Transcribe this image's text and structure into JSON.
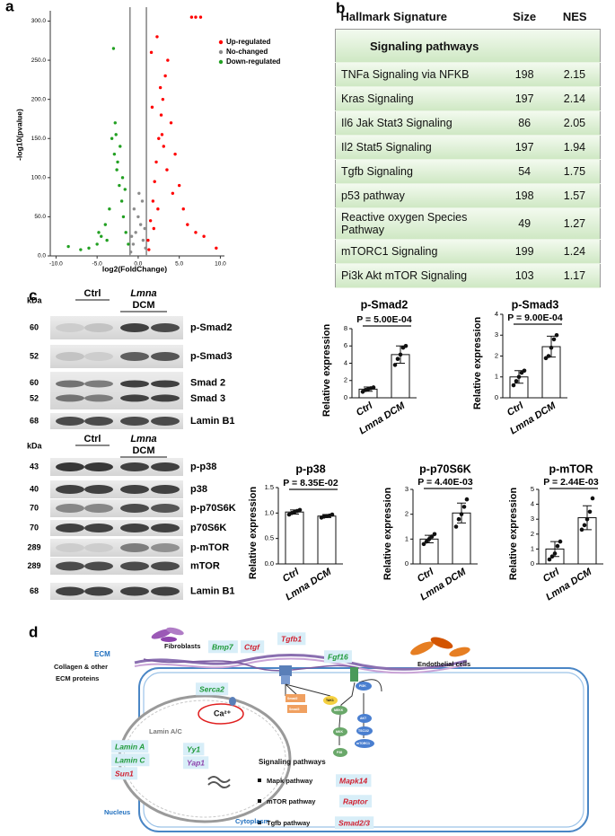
{
  "panel_labels": [
    "a",
    "b",
    "c",
    "d"
  ],
  "chart_data": [
    {
      "type": "scatter",
      "xlabel": "log2(FoldChange)",
      "ylabel": "-log10(pvalue)",
      "xlim": [
        -10.7,
        10.5
      ],
      "ylim": [
        0,
        304
      ],
      "xticks": [
        {
          "value": -10,
          "label": "-10.0"
        },
        {
          "value": -5,
          "label": "-5.0"
        },
        {
          "value": 0,
          "label": "0.0"
        },
        {
          "value": 5,
          "label": "5.0"
        },
        {
          "value": 10,
          "label": "10.0"
        }
      ],
      "yticks": [
        {
          "value": 0,
          "label": "0.0"
        },
        {
          "value": 50,
          "label": "50.0"
        },
        {
          "value": 100,
          "label": "100.0"
        },
        {
          "value": 150,
          "label": "150.0"
        },
        {
          "value": 200,
          "label": "200.0"
        },
        {
          "value": 250,
          "label": "250.0"
        },
        {
          "value": 300,
          "label": "300.0"
        }
      ],
      "vlines": [
        -1,
        1
      ],
      "legend": "upper right",
      "series": [
        {
          "name": "Up-regulated",
          "color": "#ff0000",
          "x": [
            1.2,
            1.5,
            1.8,
            2.0,
            2.2,
            2.5,
            2.8,
            3.0,
            3.3,
            3.6,
            4.0,
            4.5,
            5.0,
            5.5,
            6.0,
            7.0,
            8.0,
            9.5,
            1.6,
            2.3,
            2.7,
            3.1,
            3.5,
            1.3,
            1.9,
            2.4,
            4.2,
            2.9,
            1.7,
            6.5,
            7.0,
            7.6
          ],
          "values": [
            20,
            45,
            70,
            95,
            120,
            150,
            180,
            200,
            230,
            250,
            170,
            130,
            90,
            60,
            40,
            30,
            25,
            10,
            260,
            280,
            215,
            140,
            110,
            8,
            35,
            60,
            80,
            155,
            190,
            305,
            305,
            305
          ]
        },
        {
          "name": "No-changed",
          "color": "#8c8c8c",
          "x": [
            -0.9,
            -0.6,
            -0.3,
            0,
            0.3,
            0.6,
            0.9,
            -0.5,
            0.5,
            -0.8,
            0.8,
            0.1
          ],
          "values": [
            5,
            15,
            30,
            50,
            40,
            20,
            10,
            60,
            70,
            25,
            35,
            80
          ]
        },
        {
          "name": "Down-regulated",
          "color": "#22a022",
          "x": [
            -1.2,
            -1.5,
            -1.8,
            -2.0,
            -2.3,
            -2.6,
            -2.9,
            -3.2,
            -3.5,
            -4.0,
            -4.5,
            -5.0,
            -6.0,
            -7.0,
            -8.5,
            -2.8,
            -2.5,
            -1.6,
            -3.0,
            -2.2,
            -4.8,
            -1.9,
            -3.8,
            -2.7
          ],
          "values": [
            15,
            30,
            50,
            70,
            90,
            110,
            130,
            150,
            60,
            40,
            25,
            15,
            10,
            8,
            12,
            170,
            120,
            85,
            265,
            140,
            30,
            100,
            20,
            155
          ]
        }
      ]
    },
    {
      "type": "bar",
      "title": "p-Smad2",
      "annotation": "P = 5.00E-04",
      "ylabel": "Relative expression",
      "categories": [
        "Ctrl",
        "Lmna DCM"
      ],
      "values": [
        1.0,
        5.0
      ],
      "errors": [
        0.25,
        1.0
      ],
      "points": [
        [
          0.7,
          0.9,
          1.0,
          1.1,
          1.2
        ],
        [
          3.8,
          4.5,
          5.0,
          5.8,
          6.0
        ]
      ],
      "ylim": [
        0,
        8
      ],
      "yticks": [
        0,
        2,
        4,
        6,
        8
      ],
      "color": "#ffffff"
    },
    {
      "type": "bar",
      "title": "p-Smad3",
      "annotation": "P = 9.00E-04",
      "ylabel": "Relative expression",
      "categories": [
        "Ctrl",
        "Lmna DCM"
      ],
      "values": [
        1.0,
        2.45
      ],
      "errors": [
        0.3,
        0.5
      ],
      "points": [
        [
          0.6,
          0.8,
          1.0,
          1.2,
          1.3
        ],
        [
          1.9,
          2.0,
          2.4,
          2.8,
          3.0
        ]
      ],
      "ylim": [
        0,
        4
      ],
      "yticks": [
        0,
        1,
        2,
        3,
        4
      ],
      "color": "#ffffff"
    },
    {
      "type": "bar",
      "title": "p-p38",
      "annotation": "P = 8.35E-02",
      "ylabel": "Relative expression",
      "categories": [
        "Ctrl",
        "Lmna DCM"
      ],
      "values": [
        1.02,
        0.94
      ],
      "errors": [
        0.04,
        0.03
      ],
      "points": [
        [
          0.97,
          1.0,
          1.02,
          1.04,
          1.06
        ],
        [
          0.91,
          0.93,
          0.94,
          0.95,
          0.97
        ]
      ],
      "ylim": [
        0,
        1.5
      ],
      "yticks": [
        {
          "value": 0,
          "label": "0.0"
        },
        0.5,
        {
          "value": 1,
          "label": "1.0"
        },
        1.5
      ],
      "color": "#ffffff"
    },
    {
      "type": "bar",
      "title": "p-p70S6K",
      "annotation": "P = 4.40E-03",
      "ylabel": "Relative expression",
      "categories": [
        "Ctrl",
        "Lmna DCM"
      ],
      "values": [
        1.0,
        2.05
      ],
      "errors": [
        0.15,
        0.4
      ],
      "points": [
        [
          0.8,
          0.9,
          1.0,
          1.1,
          1.2
        ],
        [
          1.5,
          1.8,
          2.0,
          2.3,
          2.6
        ]
      ],
      "ylim": [
        0,
        3
      ],
      "yticks": [
        0,
        1,
        2,
        3
      ],
      "color": "#ffffff"
    },
    {
      "type": "bar",
      "title": "p-mTOR",
      "annotation": "P = 2.44E-03",
      "ylabel": "Relative expression",
      "categories": [
        "Ctrl",
        "Lmna DCM"
      ],
      "values": [
        1.0,
        3.1
      ],
      "errors": [
        0.5,
        0.8
      ],
      "points": [
        [
          0.3,
          0.5,
          0.7,
          1.2,
          1.5
        ],
        [
          2.3,
          2.6,
          3.0,
          3.5,
          4.4
        ]
      ],
      "ylim": [
        0,
        5
      ],
      "yticks": [
        0,
        1,
        2,
        3,
        4,
        5
      ],
      "color": "#ffffff"
    }
  ],
  "table": {
    "columns": [
      "Hallmark Signature",
      "Size",
      "NES"
    ],
    "section": "Signaling pathways",
    "rows": [
      [
        "TNFa Signaling via NFKB",
        198,
        2.15
      ],
      [
        "Kras Signaling",
        197,
        2.14
      ],
      [
        "Il6 Jak Stat3 Signaling",
        86,
        2.05
      ],
      [
        "Il2 Stat5 Signaling",
        197,
        1.94
      ],
      [
        "Tgfb Signaling",
        54,
        1.75
      ],
      [
        "p53 pathway",
        198,
        1.57
      ],
      [
        "Reactive oxygen Species Pathway",
        49,
        1.27
      ],
      [
        "mTORC1 Signaling",
        199,
        1.24
      ],
      [
        "Pi3k Akt mTOR Signaling",
        103,
        1.17
      ]
    ]
  },
  "blots": [
    {
      "kda_label": "kDa",
      "groups": [
        "Ctrl",
        [
          "Lmna",
          "DCM"
        ]
      ],
      "rows": [
        {
          "kda": [
            60
          ],
          "labels": [
            "p-Smad2"
          ]
        },
        {
          "kda": [
            52
          ],
          "labels": [
            "p-Smad3"
          ]
        },
        {
          "kda": [
            60,
            52
          ],
          "labels": [
            "Smad 2",
            "Smad 3"
          ]
        },
        {
          "kda": [
            68
          ],
          "labels": [
            "Lamin B1"
          ]
        }
      ]
    },
    {
      "kda_label": "kDa",
      "groups": [
        "Ctrl",
        [
          "Lmna",
          "DCM"
        ]
      ],
      "rows": [
        {
          "kda": [
            43
          ],
          "labels": [
            "p-p38"
          ]
        },
        {
          "kda": [
            40
          ],
          "labels": [
            "p38"
          ]
        },
        {
          "kda": [
            70
          ],
          "labels": [
            "p-p70S6K"
          ]
        },
        {
          "kda": [
            70
          ],
          "labels": [
            "p70S6K"
          ]
        },
        {
          "kda": [
            289
          ],
          "labels": [
            "p-mTOR"
          ]
        },
        {
          "kda": [
            289
          ],
          "labels": [
            "mTOR"
          ]
        },
        {
          "kda": [
            68
          ],
          "labels": [
            "Lamin B1"
          ]
        }
      ]
    }
  ],
  "diagram": {
    "labels": [
      "ECM",
      "Collagen & other",
      "ECM proteins",
      "Fibroblasts",
      "Bmp7",
      "Ctgf",
      "Tgfb1",
      "Fgf16",
      "Endothelial cells",
      "Serca2",
      "Ca²⁺",
      "Lamin A/C",
      "Lamin A",
      "Lamin C",
      "Sun1",
      "Yy1",
      "Yap1",
      "Nucleus",
      "Cytoplasm",
      "Signaling pathways",
      "Mapk pathway",
      "Mapk14",
      "mTOR pathway",
      "Raptor",
      "Tgfb pathway",
      "Smad2/3",
      "Smad2",
      "Smad3",
      "TAK1",
      "MEKK",
      "MKK",
      "P38",
      "PI3K",
      "AKT",
      "TSC1/2",
      "mTORC1"
    ]
  }
}
